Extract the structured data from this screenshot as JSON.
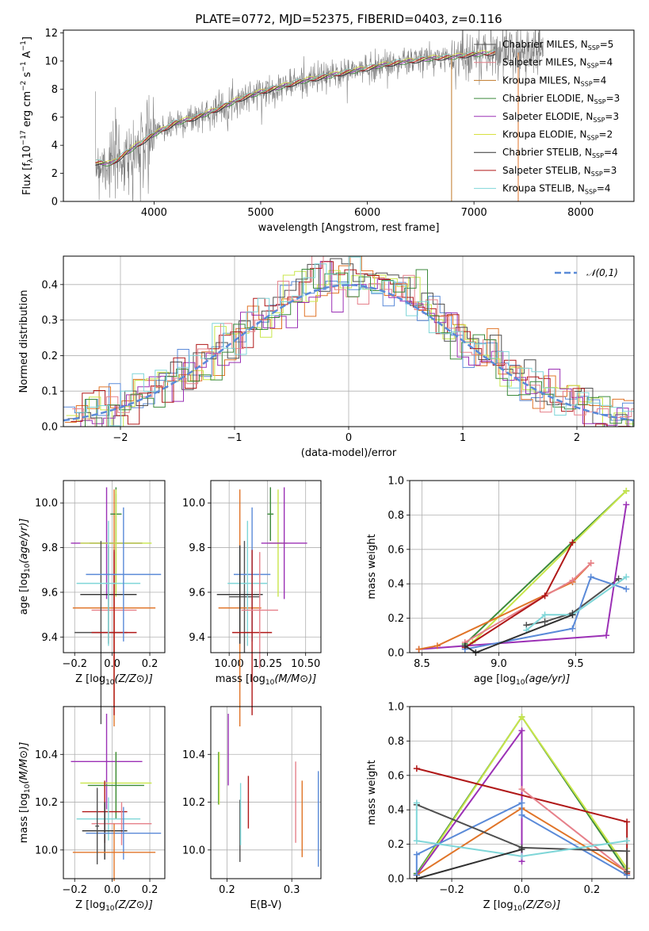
{
  "figure": {
    "title": "PLATE=0772, MJD=52375, FIBERID=0403, z=0.116"
  },
  "models": [
    {
      "name": "Chabrier MILES",
      "nssp": "5",
      "color": "#4f4f4f"
    },
    {
      "name": "Salpeter MILES",
      "nssp": "4",
      "color": "#e6808a"
    },
    {
      "name": "Kroupa MILES",
      "nssp": "4",
      "color": "#c07a2a"
    },
    {
      "name": "Chabrier ELODIE",
      "nssp": "3",
      "color": "#3c8a3c"
    },
    {
      "name": "Salpeter ELODIE",
      "nssp": "3",
      "color": "#9b30b5"
    },
    {
      "name": "Kroupa ELODIE",
      "nssp": "2",
      "color": "#d8e040"
    },
    {
      "name": "Chabrier STELIB",
      "nssp": "4",
      "color": "#303030"
    },
    {
      "name": "Salpeter STELIB",
      "nssp": "3",
      "color": "#b01818"
    },
    {
      "name": "Kroupa STELIB",
      "nssp": "4",
      "color": "#7fd6d8"
    }
  ],
  "extra_colors": {
    "blue": "#5a8ad8",
    "orange": "#e07428",
    "lime": "#c8e64a",
    "spectrum": "#808080",
    "normal": "#5a8ad8"
  },
  "chart_data": [
    {
      "type": "line",
      "id": "spectrum",
      "title": "PLATE=0772, MJD=52375, FIBERID=0403, z=0.116",
      "xlabel": "wavelength [Angstrom, rest frame]",
      "ylabel": "Flux [f_λ 10^-17 erg cm^-2 s^-1 A^-1]",
      "xlim": [
        3150,
        8500
      ],
      "ylim": [
        0,
        12.2
      ],
      "xticks": [
        "4000",
        "5000",
        "6000",
        "7000",
        "8000"
      ],
      "yticks": [
        "0",
        "2",
        "4",
        "6",
        "8",
        "10",
        "12"
      ],
      "continuum": [
        [
          3400,
          2.8
        ],
        [
          3600,
          2.7
        ],
        [
          3800,
          3.8
        ],
        [
          4000,
          4.8
        ],
        [
          4200,
          5.6
        ],
        [
          4400,
          6.0
        ],
        [
          4600,
          6.6
        ],
        [
          4800,
          7.3
        ],
        [
          5000,
          7.8
        ],
        [
          5200,
          8.2
        ],
        [
          5400,
          8.6
        ],
        [
          5600,
          8.9
        ],
        [
          5800,
          9.2
        ],
        [
          6000,
          9.5
        ],
        [
          6200,
          9.8
        ],
        [
          6400,
          10.0
        ],
        [
          6600,
          10.2
        ],
        [
          6800,
          10.3
        ],
        [
          7000,
          10.5
        ],
        [
          7200,
          10.6
        ],
        [
          7400,
          10.8
        ],
        [
          7600,
          10.9
        ]
      ],
      "data_range": [
        3450,
        7650
      ],
      "model_range": [
        3450,
        7200
      ],
      "legend": "upper right",
      "grid": false
    },
    {
      "type": "line",
      "id": "residuals",
      "xlabel": "(data-model)/error",
      "ylabel": "Normed distribution",
      "xlim": [
        -2.5,
        2.5
      ],
      "ylim": [
        0,
        0.48
      ],
      "xticks": [
        "−2",
        "−1",
        "0",
        "1",
        "2"
      ],
      "yticks": [
        "0.0",
        "0.1",
        "0.2",
        "0.3",
        "0.4"
      ],
      "legend_label": "𝒩(0,1)",
      "legend": "upper right",
      "grid": true
    },
    {
      "type": "scatter",
      "id": "age_vs_Z",
      "xlabel": "Z [log10(Z/Z⊙)]",
      "ylabel": "age [log10(age/yr)]",
      "xlim": [
        -0.26,
        0.28
      ],
      "ylim": [
        9.33,
        10.1
      ],
      "xticks": [
        "−0.2",
        "0.0",
        "0.2"
      ],
      "yticks": [
        "9.4",
        "9.6",
        "9.8",
        "10.0"
      ],
      "points": [
        {
          "x": 0.02,
          "y": 9.82,
          "xerr": 0.14,
          "yerr": 0.22,
          "color": "#4f4f4f"
        },
        {
          "x": 0.01,
          "y": 9.52,
          "xerr": 0.12,
          "yerr": 0.26,
          "color": "#e6808a"
        },
        {
          "x": 0.01,
          "y": 9.53,
          "xerr": 0.22,
          "yerr": 0.53,
          "color": "#e07428"
        },
        {
          "x": 0.02,
          "y": 9.95,
          "xerr": 0.03,
          "yerr": 0.12,
          "color": "#3c8a3c"
        },
        {
          "x": -0.03,
          "y": 9.82,
          "xerr": 0.19,
          "yerr": 0.25,
          "color": "#9b30b5"
        },
        {
          "x": 0.02,
          "y": 9.82,
          "xerr": 0.19,
          "yerr": 0.24,
          "color": "#c8e64a"
        },
        {
          "x": -0.02,
          "y": 9.59,
          "xerr": 0.15,
          "yerr": 0.22,
          "color": "#303030"
        },
        {
          "x": -0.06,
          "y": 9.42,
          "xerr": 0.14,
          "yerr": 0.41,
          "color": "#4f4f4f"
        },
        {
          "x": 0.01,
          "y": 9.42,
          "xerr": 0.12,
          "yerr": 0.37,
          "color": "#b01818"
        },
        {
          "x": -0.02,
          "y": 9.64,
          "xerr": 0.17,
          "yerr": 0.28,
          "color": "#7fd6d8"
        },
        {
          "x": 0.06,
          "y": 9.68,
          "xerr": 0.2,
          "yerr": 0.3,
          "color": "#5a8ad8"
        }
      ],
      "grid": true
    },
    {
      "type": "scatter",
      "id": "age_vs_mass",
      "xlabel": "mass [log10(M/M⊙)]",
      "ylabel": "",
      "xlim": [
        9.88,
        10.6
      ],
      "ylim": [
        9.33,
        10.1
      ],
      "xticks": [
        "10.00",
        "10.25",
        "10.50"
      ],
      "yticks": [
        "9.4",
        "9.6",
        "9.8",
        "10.0"
      ],
      "points": [
        {
          "x": 10.1,
          "y": 9.58,
          "xerr": 0.1,
          "yerr": 0.25,
          "color": "#4f4f4f"
        },
        {
          "x": 10.07,
          "y": 9.53,
          "xerr": 0.14,
          "yerr": 0.53,
          "color": "#e07428"
        },
        {
          "x": 10.32,
          "y": 9.82,
          "xerr": 0.06,
          "yerr": 0.24,
          "color": "#c8e64a"
        },
        {
          "x": 10.36,
          "y": 9.82,
          "xerr": 0.15,
          "yerr": 0.25,
          "color": "#9b30b5"
        },
        {
          "x": 10.27,
          "y": 9.95,
          "xerr": 0.02,
          "yerr": 0.12,
          "color": "#3c8a3c"
        },
        {
          "x": 10.15,
          "y": 9.68,
          "xerr": 0.12,
          "yerr": 0.3,
          "color": "#5a8ad8"
        },
        {
          "x": 10.12,
          "y": 9.64,
          "xerr": 0.13,
          "yerr": 0.28,
          "color": "#7fd6d8"
        },
        {
          "x": 10.07,
          "y": 9.59,
          "xerr": 0.15,
          "yerr": 0.22,
          "color": "#303030"
        },
        {
          "x": 10.15,
          "y": 9.42,
          "xerr": 0.13,
          "yerr": 0.37,
          "color": "#b01818"
        },
        {
          "x": 10.2,
          "y": 9.52,
          "xerr": 0.12,
          "yerr": 0.26,
          "color": "#e6808a"
        }
      ],
      "grid": true
    },
    {
      "type": "line",
      "id": "mass_weight_vs_age",
      "xlabel": "age [log10(age/yr)]",
      "ylabel": "mass weight",
      "xlim": [
        8.42,
        9.88
      ],
      "ylim": [
        0,
        1
      ],
      "xticks": [
        "8.5",
        "9.0",
        "9.5"
      ],
      "yticks": [
        "0.0",
        "0.2",
        "0.4",
        "0.6",
        "0.8",
        "1.0"
      ],
      "series": [
        {
          "color": "#4f4f4f",
          "x": [
            9.18,
            9.3,
            9.48,
            9.78
          ],
          "y": [
            0.16,
            0.18,
            0.23,
            0.43
          ]
        },
        {
          "color": "#3c8a3c",
          "x": [
            8.78,
            9.83
          ],
          "y": [
            0.05,
            0.94
          ]
        },
        {
          "color": "#c8e64a",
          "x": [
            8.83,
            9.83
          ],
          "y": [
            0.06,
            0.94
          ]
        },
        {
          "color": "#9b30b5",
          "x": [
            8.48,
            9.7,
            9.83
          ],
          "y": [
            0.02,
            0.1,
            0.86
          ]
        },
        {
          "color": "#e07428",
          "x": [
            8.48,
            8.6,
            9.48,
            9.6
          ],
          "y": [
            0.02,
            0.04,
            0.41,
            0.52
          ]
        },
        {
          "color": "#e6808a",
          "x": [
            8.78,
            9.3,
            9.48,
            9.6
          ],
          "y": [
            0.06,
            0.33,
            0.42,
            0.52
          ]
        },
        {
          "color": "#b01818",
          "x": [
            8.78,
            9.3,
            9.48
          ],
          "y": [
            0.03,
            0.33,
            0.64
          ]
        },
        {
          "color": "#5a8ad8",
          "x": [
            8.78,
            9.48,
            9.6,
            9.83
          ],
          "y": [
            0.02,
            0.14,
            0.44,
            0.37
          ]
        },
        {
          "color": "#7fd6d8",
          "x": [
            9.18,
            9.3,
            9.48,
            9.83
          ],
          "y": [
            0.13,
            0.22,
            0.22,
            0.44
          ]
        },
        {
          "color": "#303030",
          "x": [
            8.78,
            8.85,
            9.48
          ],
          "y": [
            0.04,
            0.0,
            0.22
          ]
        }
      ],
      "grid": true
    },
    {
      "type": "scatter",
      "id": "mass_vs_Z",
      "xlabel": "Z [log10(Z/Z⊙)]",
      "ylabel": "mass [log10(M/M⊙)]",
      "xlim": [
        -0.26,
        0.28
      ],
      "ylim": [
        9.88,
        10.6
      ],
      "xticks": [
        "−0.2",
        "0.0",
        "0.2"
      ],
      "yticks": [
        "10.0",
        "10.2",
        "10.4"
      ],
      "points": [
        {
          "x": -0.03,
          "y": 10.37,
          "xerr": 0.19,
          "yerr": 0.2,
          "color": "#9b30b5"
        },
        {
          "x": 0.02,
          "y": 10.28,
          "xerr": 0.19,
          "yerr": 0.13,
          "color": "#c8e64a"
        },
        {
          "x": 0.02,
          "y": 10.27,
          "xerr": 0.15,
          "yerr": 0.14,
          "color": "#3c8a3c"
        },
        {
          "x": -0.04,
          "y": 10.16,
          "xerr": 0.12,
          "yerr": 0.13,
          "color": "#b01818"
        },
        {
          "x": -0.02,
          "y": 10.13,
          "xerr": 0.17,
          "yerr": 0.09,
          "color": "#7fd6d8"
        },
        {
          "x": 0.05,
          "y": 10.11,
          "xerr": 0.16,
          "yerr": 0.09,
          "color": "#e6808a"
        },
        {
          "x": -0.04,
          "y": 10.08,
          "xerr": 0.12,
          "yerr": 0.12,
          "color": "#303030"
        },
        {
          "x": 0.06,
          "y": 10.07,
          "xerr": 0.2,
          "yerr": 0.11,
          "color": "#5a8ad8"
        },
        {
          "x": 0.01,
          "y": 9.99,
          "xerr": 0.22,
          "yerr": 0.12,
          "color": "#e07428"
        },
        {
          "x": -0.08,
          "y": 10.1,
          "xerr": 0.01,
          "yerr": 0.16,
          "color": "#4f4f4f"
        }
      ],
      "grid": true
    },
    {
      "type": "scatter",
      "id": "mass_vs_EBV",
      "xlabel": "E(B-V)",
      "ylabel": "",
      "xlim": [
        0.175,
        0.345
      ],
      "ylim": [
        9.88,
        10.6
      ],
      "xticks": [
        "0.2",
        "0.3"
      ],
      "yticks": [
        "10.0",
        "10.2",
        "10.4"
      ],
      "points": [
        {
          "x": 0.187,
          "y": 10.3,
          "yerr": 0.11,
          "color": "#3c8a3c"
        },
        {
          "x": 0.188,
          "y": 10.3,
          "yerr": 0.11,
          "color": "#c8e64a"
        },
        {
          "x": 0.202,
          "y": 10.42,
          "yerr": 0.15,
          "color": "#9b30b5"
        },
        {
          "x": 0.22,
          "y": 10.08,
          "yerr": 0.13,
          "color": "#4f4f4f"
        },
        {
          "x": 0.221,
          "y": 10.15,
          "yerr": 0.13,
          "color": "#7fd6d8"
        },
        {
          "x": 0.233,
          "y": 10.2,
          "yerr": 0.11,
          "color": "#b01818"
        },
        {
          "x": 0.306,
          "y": 10.2,
          "yerr": 0.17,
          "color": "#e6808a"
        },
        {
          "x": 0.316,
          "y": 10.13,
          "yerr": 0.16,
          "color": "#e07428"
        },
        {
          "x": 0.341,
          "y": 10.13,
          "yerr": 0.2,
          "color": "#5a8ad8"
        }
      ],
      "grid": true
    },
    {
      "type": "line",
      "id": "mass_weight_vs_Z",
      "xlabel": "Z [log10(Z/Z⊙)]",
      "ylabel": "mass weight",
      "xlim": [
        -0.32,
        0.32
      ],
      "ylim": [
        0,
        1
      ],
      "xticks": [
        "−0.2",
        "0.0",
        "0.2"
      ],
      "yticks": [
        "0.0",
        "0.2",
        "0.4",
        "0.6",
        "0.8",
        "1.0"
      ],
      "series": [
        {
          "color": "#3c8a3c",
          "x": [
            -0.3,
            0.0,
            0.3
          ],
          "y": [
            0.03,
            0.94,
            0.04
          ]
        },
        {
          "color": "#c8e64a",
          "x": [
            -0.3,
            0.0,
            0.3
          ],
          "y": [
            0.02,
            0.94,
            0.06
          ]
        },
        {
          "color": "#9b30b5",
          "x": [
            -0.3,
            0.0,
            0.0
          ],
          "y": [
            0.02,
            0.86,
            0.1
          ]
        },
        {
          "color": "#b01818",
          "x": [
            -0.3,
            0.3,
            0.3
          ],
          "y": [
            0.64,
            0.33,
            0.03
          ]
        },
        {
          "color": "#e07428",
          "x": [
            -0.3,
            0.0,
            0.3,
            0.3
          ],
          "y": [
            0.02,
            0.41,
            0.04,
            0.02
          ]
        },
        {
          "color": "#e6808a",
          "x": [
            0.0,
            0.3
          ],
          "y": [
            0.52,
            0.04
          ]
        },
        {
          "color": "#5a8ad8",
          "x": [
            -0.3,
            -0.3,
            0.0,
            0.0,
            0.3
          ],
          "y": [
            0.02,
            0.14,
            0.44,
            0.37,
            0.02
          ]
        },
        {
          "color": "#4f4f4f",
          "x": [
            -0.3,
            0.0,
            0.3,
            0.3
          ],
          "y": [
            0.43,
            0.18,
            0.16,
            0.04
          ]
        },
        {
          "color": "#7fd6d8",
          "x": [
            -0.3,
            -0.3,
            0.0,
            0.3
          ],
          "y": [
            0.44,
            0.22,
            0.13,
            0.22
          ]
        },
        {
          "color": "#303030",
          "x": [
            -0.3,
            0.0
          ],
          "y": [
            0.0,
            0.17
          ]
        }
      ],
      "grid": true
    }
  ]
}
